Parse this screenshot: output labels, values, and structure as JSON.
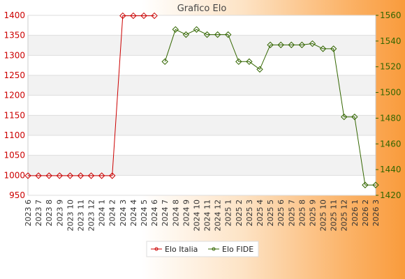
{
  "chart_data": {
    "type": "line",
    "title": "Grafico Elo",
    "categories": [
      "2023 6",
      "2023 7",
      "2023 8",
      "2023 9",
      "2023 10",
      "2023 11",
      "2023 12",
      "2024 1",
      "2024 2",
      "2024 3",
      "2024 4",
      "2024 5",
      "2024 6",
      "2024 7",
      "2024 8",
      "2024 9",
      "2024 10",
      "2024 11",
      "2024 12",
      "2025 1",
      "2025 2",
      "2025 3",
      "2025 4",
      "2025 5",
      "2025 6",
      "2025 7",
      "2025 8",
      "2025 9",
      "2025 10",
      "2025 11",
      "2025 12",
      "2026 1",
      "2026 2",
      "2026 3"
    ],
    "left_axis": {
      "ylim": [
        950,
        1400
      ],
      "ticks": [
        950,
        1000,
        1050,
        1100,
        1150,
        1200,
        1250,
        1300,
        1350,
        1400
      ],
      "color": "#cc0000"
    },
    "right_axis": {
      "ylim": [
        1420,
        1560
      ],
      "ticks": [
        1420,
        1440,
        1460,
        1480,
        1500,
        1520,
        1540,
        1560
      ],
      "color": "#336600"
    },
    "grid": true,
    "legend_position": "bottom-center",
    "series": [
      {
        "name": "Elo Italia",
        "axis": "left",
        "color": "#cc0000",
        "values": [
          999,
          999,
          999,
          999,
          999,
          999,
          999,
          999,
          999,
          1399,
          1399,
          1399,
          1399,
          null,
          null,
          null,
          null,
          null,
          null,
          null,
          null,
          null,
          null,
          null,
          null,
          null,
          null,
          null,
          null,
          null,
          null,
          null,
          null,
          null
        ]
      },
      {
        "name": "Elo FIDE",
        "axis": "right",
        "color": "#336600",
        "values": [
          null,
          null,
          null,
          null,
          null,
          null,
          null,
          null,
          null,
          null,
          null,
          null,
          null,
          1524,
          1549,
          1545,
          1549,
          1545,
          1545,
          1545,
          1524,
          1524,
          1518,
          1537,
          1537,
          1537,
          1537,
          1538,
          1534,
          1534,
          1481,
          1481,
          1428,
          1428
        ]
      }
    ]
  }
}
